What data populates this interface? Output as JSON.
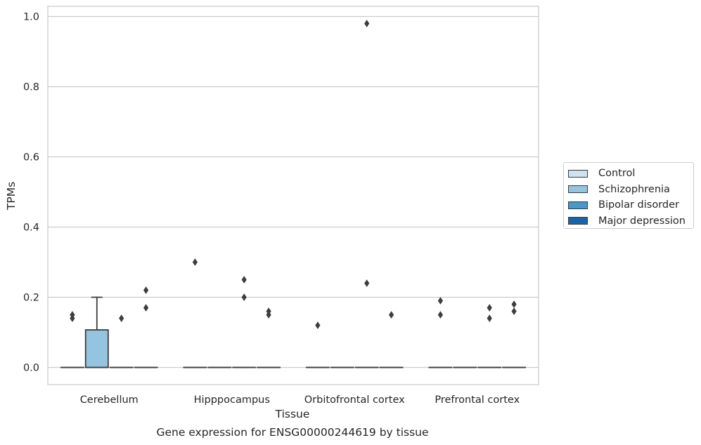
{
  "chart_data": {
    "type": "box",
    "title": "Gene expression for ENSG00000244619 by tissue",
    "xlabel": "Tissue",
    "ylabel": "TPMs",
    "categories": [
      "Cerebellum",
      "Hipppocampus",
      "Orbitofrontal cortex",
      "Prefrontal cortex"
    ],
    "ylim": [
      -0.049,
      1.029
    ],
    "yticks": [
      0.0,
      0.2,
      0.4,
      0.6,
      0.8,
      1.0
    ],
    "ytick_labels": [
      "0.0",
      "0.2",
      "0.4",
      "0.6",
      "0.8",
      "1.0"
    ],
    "grid": true,
    "legend_position": "right",
    "series": [
      {
        "name": "Control",
        "color": "#d0e1f2",
        "boxes": [
          {
            "category": "Cerebellum",
            "q1": 0,
            "median": 0,
            "q3": 0,
            "whisker_low": 0,
            "whisker_high": 0,
            "outliers": [
              0.14,
              0.15
            ]
          },
          {
            "category": "Hipppocampus",
            "q1": 0,
            "median": 0,
            "q3": 0,
            "whisker_low": 0,
            "whisker_high": 0,
            "outliers": [
              0.3
            ]
          },
          {
            "category": "Orbitofrontal cortex",
            "q1": 0,
            "median": 0,
            "q3": 0,
            "whisker_low": 0,
            "whisker_high": 0,
            "outliers": [
              0.12
            ]
          },
          {
            "category": "Prefrontal cortex",
            "q1": 0,
            "median": 0,
            "q3": 0,
            "whisker_low": 0,
            "whisker_high": 0,
            "outliers": [
              0.15,
              0.19
            ]
          }
        ]
      },
      {
        "name": "Schizophrenia",
        "color": "#94c4df",
        "boxes": [
          {
            "category": "Cerebellum",
            "q1": 0,
            "median": 0,
            "q3": 0.107,
            "whisker_low": 0,
            "whisker_high": 0.2,
            "outliers": []
          },
          {
            "category": "Hipppocampus",
            "q1": 0,
            "median": 0,
            "q3": 0,
            "whisker_low": 0,
            "whisker_high": 0,
            "outliers": []
          },
          {
            "category": "Orbitofrontal cortex",
            "q1": 0,
            "median": 0,
            "q3": 0,
            "whisker_low": 0,
            "whisker_high": 0,
            "outliers": []
          },
          {
            "category": "Prefrontal cortex",
            "q1": 0,
            "median": 0,
            "q3": 0,
            "whisker_low": 0,
            "whisker_high": 0,
            "outliers": []
          }
        ]
      },
      {
        "name": "Bipolar disorder",
        "color": "#4a98c9",
        "boxes": [
          {
            "category": "Cerebellum",
            "q1": 0,
            "median": 0,
            "q3": 0,
            "whisker_low": 0,
            "whisker_high": 0,
            "outliers": [
              0.14
            ]
          },
          {
            "category": "Hipppocampus",
            "q1": 0,
            "median": 0,
            "q3": 0,
            "whisker_low": 0,
            "whisker_high": 0,
            "outliers": [
              0.2,
              0.25
            ]
          },
          {
            "category": "Orbitofrontal cortex",
            "q1": 0,
            "median": 0,
            "q3": 0,
            "whisker_low": 0,
            "whisker_high": 0,
            "outliers": [
              0.24,
              0.98
            ]
          },
          {
            "category": "Prefrontal cortex",
            "q1": 0,
            "median": 0,
            "q3": 0,
            "whisker_low": 0,
            "whisker_high": 0,
            "outliers": [
              0.14,
              0.17
            ]
          }
        ]
      },
      {
        "name": "Major depression",
        "color": "#1764ab",
        "boxes": [
          {
            "category": "Cerebellum",
            "q1": 0,
            "median": 0,
            "q3": 0,
            "whisker_low": 0,
            "whisker_high": 0,
            "outliers": [
              0.17,
              0.22
            ]
          },
          {
            "category": "Hipppocampus",
            "q1": 0,
            "median": 0,
            "q3": 0,
            "whisker_low": 0,
            "whisker_high": 0,
            "outliers": [
              0.15,
              0.16
            ]
          },
          {
            "category": "Orbitofrontal cortex",
            "q1": 0,
            "median": 0,
            "q3": 0,
            "whisker_low": 0,
            "whisker_high": 0,
            "outliers": [
              0.15
            ]
          },
          {
            "category": "Prefrontal cortex",
            "q1": 0,
            "median": 0,
            "q3": 0,
            "whisker_low": 0,
            "whisker_high": 0,
            "outliers": [
              0.16,
              0.18
            ]
          }
        ]
      }
    ]
  }
}
